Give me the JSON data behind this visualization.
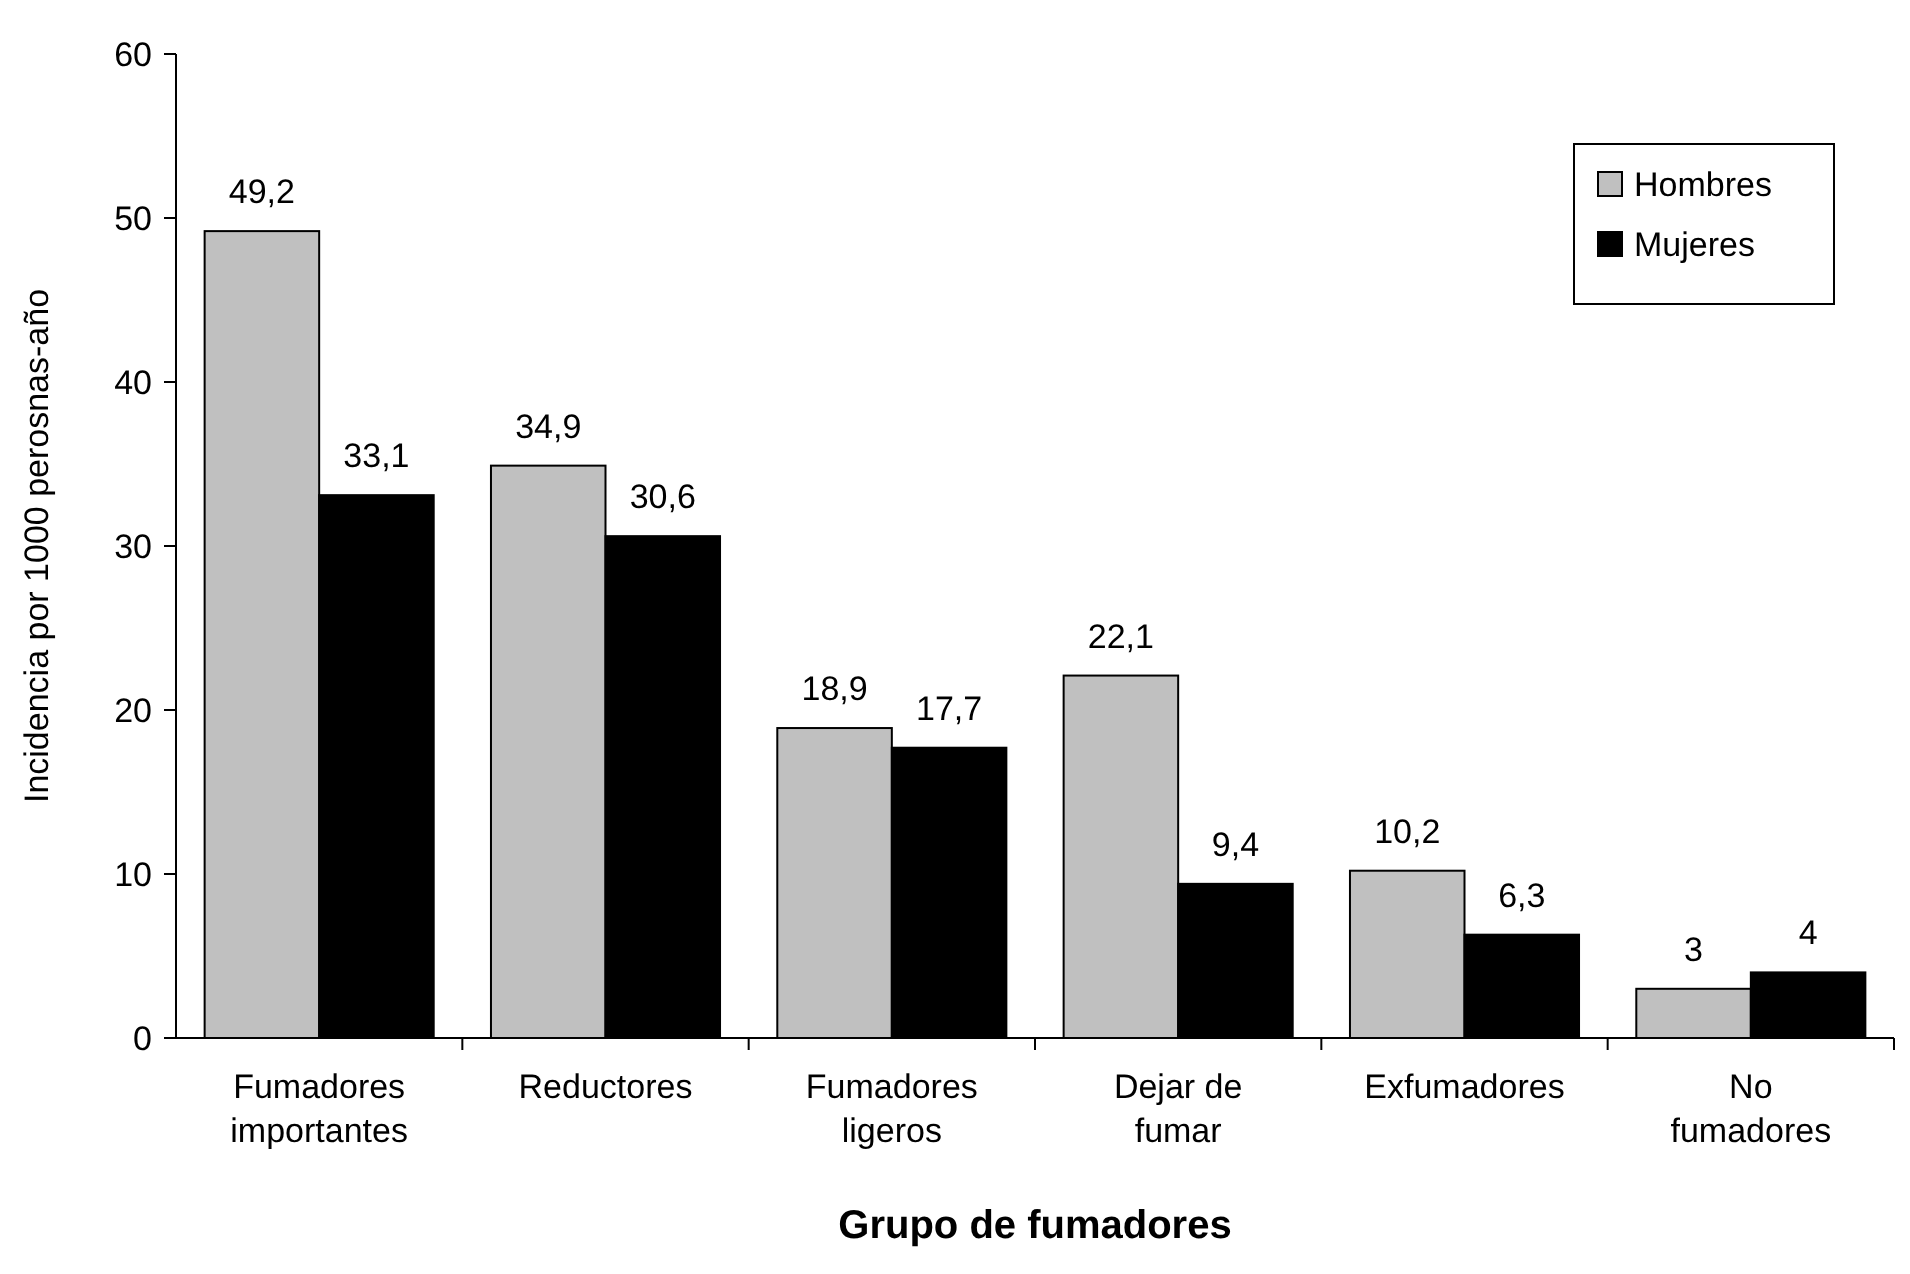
{
  "chart_data": {
    "type": "bar",
    "xlabel": "Grupo de fumadores",
    "ylabel": "Incidencia por 1000 perosnas-año",
    "categories": [
      "Fumadores importantes",
      "Reductores",
      "Fumadores ligeros",
      "Dejar de fumar",
      "Exfumadores",
      "No fumadores"
    ],
    "series": [
      {
        "name": "Hombres",
        "color": "#c0c0c0",
        "values": [
          49.2,
          34.9,
          18.9,
          22.1,
          10.2,
          3
        ],
        "value_labels": [
          "49,2",
          "34,9",
          "18,9",
          "22,1",
          "10,2",
          "3"
        ]
      },
      {
        "name": "Mujeres",
        "color": "#000000",
        "values": [
          33.1,
          30.6,
          17.7,
          9.4,
          6.3,
          4
        ],
        "value_labels": [
          "33,1",
          "30,6",
          "17,7",
          "9,4",
          "6,3",
          "4"
        ]
      }
    ],
    "ylim": [
      0,
      60
    ],
    "yticks": [
      0,
      10,
      20,
      30,
      40,
      50,
      60
    ],
    "grid": false,
    "legend": "top right"
  }
}
